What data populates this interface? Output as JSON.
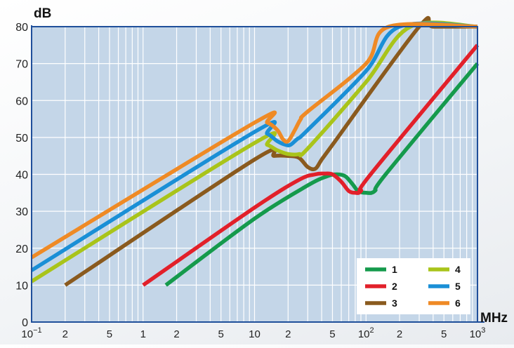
{
  "chart_data": {
    "type": "line",
    "title": "",
    "ylabel": "dB",
    "xlabel": "MHz",
    "x_scale": "log",
    "xlim": [
      0.1,
      1000
    ],
    "ylim": [
      0,
      80
    ],
    "grid": true,
    "legend_position": "bottom-right",
    "background_color": "#c4d6e8",
    "grid_color": "#ffffff",
    "axis_color": "#1f4f9a",
    "y_ticks": [
      {
        "value": 0,
        "label": "0"
      },
      {
        "value": 10,
        "label": "10"
      },
      {
        "value": 20,
        "label": "20"
      },
      {
        "value": 30,
        "label": "30"
      },
      {
        "value": 40,
        "label": "40"
      },
      {
        "value": 50,
        "label": "50"
      },
      {
        "value": 60,
        "label": "60"
      },
      {
        "value": 70,
        "label": "70"
      },
      {
        "value": 80,
        "label": "80"
      }
    ],
    "x_ticks": [
      {
        "value": 0.1,
        "base": "10",
        "exp": "−1"
      },
      {
        "value": 0.2,
        "base": "2"
      },
      {
        "value": 0.5,
        "base": "5"
      },
      {
        "value": 1,
        "base": "1"
      },
      {
        "value": 2,
        "base": "2"
      },
      {
        "value": 5,
        "base": "5"
      },
      {
        "value": 10,
        "base": "10"
      },
      {
        "value": 20,
        "base": "2"
      },
      {
        "value": 50,
        "base": "5"
      },
      {
        "value": 100,
        "base": "10",
        "exp": "2"
      },
      {
        "value": 200,
        "base": "2"
      },
      {
        "value": 500,
        "base": "5"
      },
      {
        "value": 1000,
        "base": "10",
        "exp": "3"
      }
    ],
    "series": [
      {
        "name": "1",
        "color": "#159a4c",
        "x": [
          1.6,
          10,
          30,
          45,
          55,
          65,
          75,
          85,
          100,
          120,
          150,
          1000
        ],
        "y": [
          10,
          28,
          37,
          39.5,
          40,
          39.5,
          37.5,
          35.5,
          35,
          35.5,
          40,
          70
        ]
      },
      {
        "name": "2",
        "color": "#e2202a",
        "x": [
          1,
          10,
          25,
          35,
          42,
          50,
          60,
          70,
          80,
          90,
          110,
          1000
        ],
        "y": [
          10,
          31,
          38.5,
          40,
          40.2,
          40,
          38,
          35.5,
          35,
          35.5,
          40,
          75
        ]
      },
      {
        "name": "3",
        "color": "#8a5a1e",
        "x": [
          0.2,
          10,
          15,
          20,
          25,
          30,
          35,
          40,
          50,
          300,
          400,
          1000
        ],
        "y": [
          10,
          44,
          45,
          45,
          44.5,
          42,
          41.5,
          44,
          48,
          80,
          80,
          80
        ]
      },
      {
        "name": "4",
        "color": "#a9c41a",
        "x": [
          0.1,
          10,
          13,
          16,
          20,
          25,
          30,
          100,
          250,
          1000
        ],
        "y": [
          11,
          48.5,
          48,
          46.5,
          45.5,
          45.5,
          47,
          65,
          80,
          80
        ]
      },
      {
        "name": "5",
        "color": "#1a8fd6",
        "x": [
          0.1,
          10,
          13,
          16,
          19,
          21,
          24,
          30,
          100,
          200,
          1000
        ],
        "y": [
          14,
          51.5,
          51,
          49,
          48,
          48,
          49.5,
          52,
          68,
          80,
          80
        ]
      },
      {
        "name": "6",
        "color": "#ef8a25",
        "x": [
          0.1,
          10,
          13,
          16,
          18,
          20,
          23,
          26,
          30,
          100,
          160,
          1000
        ],
        "y": [
          17.5,
          54,
          54,
          52,
          49.5,
          49,
          52,
          55,
          57,
          70,
          80,
          80
        ]
      }
    ]
  }
}
